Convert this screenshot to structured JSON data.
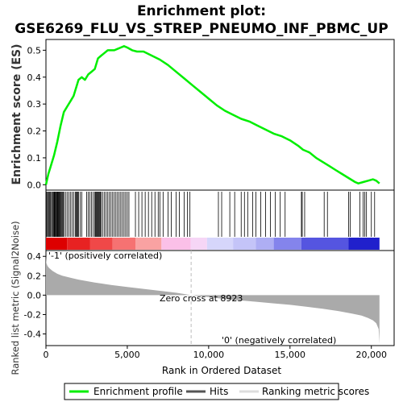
{
  "title_line1": "Enrichment plot:",
  "title_line2": "GSE6269_FLU_VS_STREP_PNEUMO_INF_PBMC_UP",
  "colors": {
    "profile": "#00ee00",
    "hits": "#000000",
    "metric_fill": "#aaaaaa",
    "pos_label": "#dd0000",
    "neg_label": "#0000cc",
    "zero_cross_line": "#bbbbbb"
  },
  "chart_data": [
    {
      "type": "line",
      "panel": "enrichment-profile",
      "ylabel": "Enrichment score (ES)",
      "xlim": [
        0,
        21400
      ],
      "ylim": [
        -0.02,
        0.54
      ],
      "y_ticks": [
        0.0,
        0.1,
        0.2,
        0.3,
        0.4,
        0.5
      ],
      "y_tick_labels": [
        "0.0",
        "0.1",
        "0.2",
        "0.3",
        "0.4",
        "0.5"
      ],
      "series": [
        {
          "name": "Enrichment profile",
          "x": [
            0,
            150,
            300,
            500,
            700,
            900,
            1100,
            1300,
            1500,
            1700,
            1900,
            2000,
            2200,
            2400,
            2600,
            2800,
            3000,
            3200,
            3400,
            3600,
            3800,
            4000,
            4200,
            4400,
            4600,
            4800,
            5000,
            5300,
            5600,
            6000,
            6500,
            7000,
            7500,
            8000,
            8500,
            9000,
            9500,
            10000,
            10500,
            11000,
            11500,
            12000,
            12500,
            13000,
            13500,
            14000,
            14500,
            15000,
            15500,
            15800,
            16200,
            16600,
            17000,
            17400,
            17800,
            18200,
            18600,
            19000,
            19200,
            19500,
            19800,
            20100,
            20300,
            20500
          ],
          "y": [
            0.0,
            0.04,
            0.07,
            0.11,
            0.16,
            0.22,
            0.27,
            0.29,
            0.31,
            0.33,
            0.37,
            0.39,
            0.4,
            0.39,
            0.41,
            0.42,
            0.43,
            0.47,
            0.48,
            0.49,
            0.5,
            0.5,
            0.5,
            0.505,
            0.51,
            0.515,
            0.51,
            0.5,
            0.495,
            0.495,
            0.48,
            0.465,
            0.445,
            0.42,
            0.395,
            0.37,
            0.345,
            0.32,
            0.295,
            0.275,
            0.26,
            0.245,
            0.235,
            0.22,
            0.205,
            0.19,
            0.18,
            0.165,
            0.145,
            0.13,
            0.12,
            0.1,
            0.085,
            0.07,
            0.055,
            0.04,
            0.025,
            0.01,
            0.005,
            0.01,
            0.015,
            0.02,
            0.015,
            0.005
          ]
        }
      ]
    },
    {
      "type": "hits",
      "panel": "hit-ticks",
      "legend_label": "Hits",
      "hit_ranks": [
        20,
        60,
        110,
        170,
        230,
        280,
        340,
        400,
        450,
        500,
        540,
        580,
        620,
        660,
        700,
        740,
        780,
        820,
        860,
        900,
        950,
        1000,
        1050,
        1100,
        1200,
        1300,
        1400,
        1500,
        1600,
        1700,
        1800,
        1850,
        1900,
        1950,
        2000,
        2100,
        2200,
        2500,
        2600,
        2700,
        2800,
        2900,
        3000,
        3050,
        3100,
        3150,
        3200,
        3250,
        3300,
        3350,
        3400,
        3500,
        3600,
        3700,
        3800,
        3900,
        4000,
        4100,
        4200,
        4300,
        4400,
        4500,
        4600,
        4700,
        4800,
        4900,
        5000,
        5100,
        5500,
        5700,
        5900,
        6100,
        6300,
        6500,
        6700,
        6900,
        7000,
        7200,
        7500,
        7700,
        8000,
        8200,
        8500,
        8700,
        8850,
        10600,
        10800,
        11300,
        11600,
        12000,
        12200,
        12400,
        12700,
        12900,
        13200,
        13500,
        13800,
        14100,
        14400,
        14700,
        15700,
        15750,
        15900,
        17100,
        17300,
        18600,
        18700,
        19300,
        19500,
        19600,
        19700,
        20000,
        20200
      ]
    },
    {
      "type": "area",
      "panel": "ranked-list-metric",
      "ylabel": "Ranked list metric (Signal2Noise)",
      "xlabel": "Rank in Ordered Dataset",
      "xlim": [
        0,
        21400
      ],
      "ylim": [
        -0.52,
        0.46
      ],
      "x_ticks": [
        0,
        5000,
        10000,
        15000,
        20000
      ],
      "x_tick_labels": [
        "0",
        "5,000",
        "10,000",
        "15,000",
        "20,000"
      ],
      "y_ticks": [
        -0.4,
        -0.2,
        0.0,
        0.2,
        0.4
      ],
      "y_tick_labels": [
        "-0.4",
        "-0.2",
        "0.0",
        "0.2",
        "0.4"
      ],
      "series": [
        {
          "name": "Ranking metric scores",
          "x": [
            0,
            30,
            100,
            200,
            400,
            700,
            1000,
            1500,
            2000,
            3000,
            4000,
            5000,
            6000,
            7000,
            8000,
            8923,
            10000,
            11000,
            12000,
            13000,
            14000,
            15000,
            16000,
            17000,
            18000,
            18800,
            19400,
            19800,
            20100,
            20300,
            20450,
            20500
          ],
          "y": [
            0.4,
            0.33,
            0.3,
            0.28,
            0.25,
            0.22,
            0.2,
            0.18,
            0.16,
            0.13,
            0.105,
            0.085,
            0.065,
            0.045,
            0.025,
            0.0,
            -0.02,
            -0.04,
            -0.055,
            -0.07,
            -0.085,
            -0.1,
            -0.12,
            -0.14,
            -0.165,
            -0.19,
            -0.21,
            -0.235,
            -0.26,
            -0.29,
            -0.35,
            -0.5
          ]
        }
      ],
      "annotations": {
        "zero_cross": {
          "x": 8923,
          "label": "Zero cross at 8923"
        },
        "positive_label": "'-1' (positively correlated)",
        "negative_label": "'0' (negatively correlated)"
      }
    }
  ],
  "heatmap_segments": [
    {
      "from": 0,
      "to": 1300,
      "color": "#dd0000"
    },
    {
      "from": 1300,
      "to": 2700,
      "color": "#e82222"
    },
    {
      "from": 2700,
      "to": 4100,
      "color": "#f04848"
    },
    {
      "from": 4100,
      "to": 5500,
      "color": "#f67272"
    },
    {
      "from": 5500,
      "to": 7100,
      "color": "#f9a2a2"
    },
    {
      "from": 7100,
      "to": 8900,
      "color": "#fbc0e8"
    },
    {
      "from": 8900,
      "to": 9900,
      "color": "#f6d6f6"
    },
    {
      "from": 9900,
      "to": 11500,
      "color": "#d6d6fb"
    },
    {
      "from": 11500,
      "to": 12900,
      "color": "#c4c4f8"
    },
    {
      "from": 12900,
      "to": 14000,
      "color": "#aeaef4"
    },
    {
      "from": 14000,
      "to": 15700,
      "color": "#8484ec"
    },
    {
      "from": 15700,
      "to": 18600,
      "color": "#5555e0"
    },
    {
      "from": 18600,
      "to": 20500,
      "color": "#2020cc"
    }
  ],
  "legend": {
    "profile_label": "Enrichment profile",
    "hits_label": "Hits",
    "ranking_label": "Ranking metric scores"
  }
}
